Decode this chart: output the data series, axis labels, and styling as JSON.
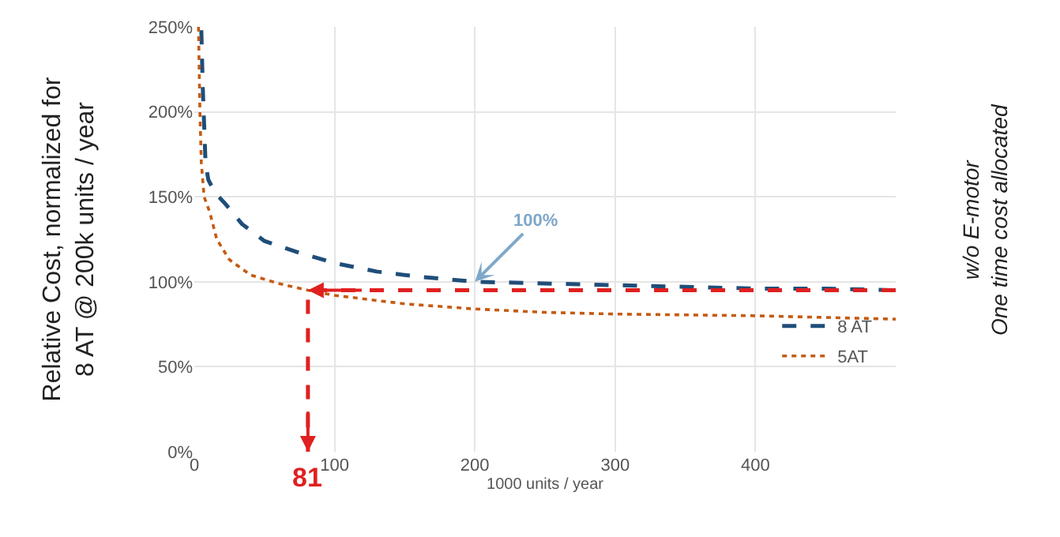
{
  "chart_data": {
    "type": "line",
    "xlabel": "1000 units / year",
    "ylabel": "Relative Cost, normalized for\n8 AT @ 200k units / year",
    "xlim": [
      0,
      500
    ],
    "xticks": [
      0,
      100,
      200,
      300,
      400
    ],
    "ylim": [
      0,
      250
    ],
    "yticks": [
      {
        "value": 0,
        "label": "0%"
      },
      {
        "value": 50,
        "label": "50%"
      },
      {
        "value": 100,
        "label": "100%"
      },
      {
        "value": 150,
        "label": "150%"
      },
      {
        "value": 200,
        "label": "200%"
      },
      {
        "value": 250,
        "label": "250%"
      }
    ],
    "grid": true,
    "legend": "bottom right",
    "series": [
      {
        "name": "8 AT",
        "color": "#1f4e79",
        "line_style": "dashed",
        "x": [
          5,
          6,
          8,
          10,
          15,
          22,
          34,
          50,
          75,
          100,
          130,
          160,
          200,
          250,
          300,
          350,
          400,
          450,
          500
        ],
        "values": [
          248,
          215,
          170,
          160,
          152,
          146,
          134,
          124,
          117,
          111,
          106,
          103,
          100,
          99,
          98,
          97,
          96,
          96,
          95
        ]
      },
      {
        "name": "5AT",
        "color": "#c55a11",
        "line_style": "dotted",
        "x": [
          3,
          4,
          5,
          7,
          11,
          16,
          25,
          40,
          60,
          81,
          100,
          150,
          200,
          250,
          300,
          400,
          500
        ],
        "values": [
          250,
          200,
          170,
          150,
          141,
          125,
          113,
          104,
          99,
          95,
          92,
          87,
          84,
          82,
          81,
          80,
          78
        ]
      },
      {
        "color": "#e02020",
        "line_style": "dashed",
        "x": [
          500,
          81,
          81
        ],
        "values": [
          95,
          95,
          0
        ]
      }
    ],
    "annotations": [
      {
        "text": "100%",
        "x": 200,
        "y": 100
      },
      {
        "text": "81",
        "x": 81,
        "y": 0
      },
      "w/o E-motor\nOne time cost allocated"
    ]
  }
}
